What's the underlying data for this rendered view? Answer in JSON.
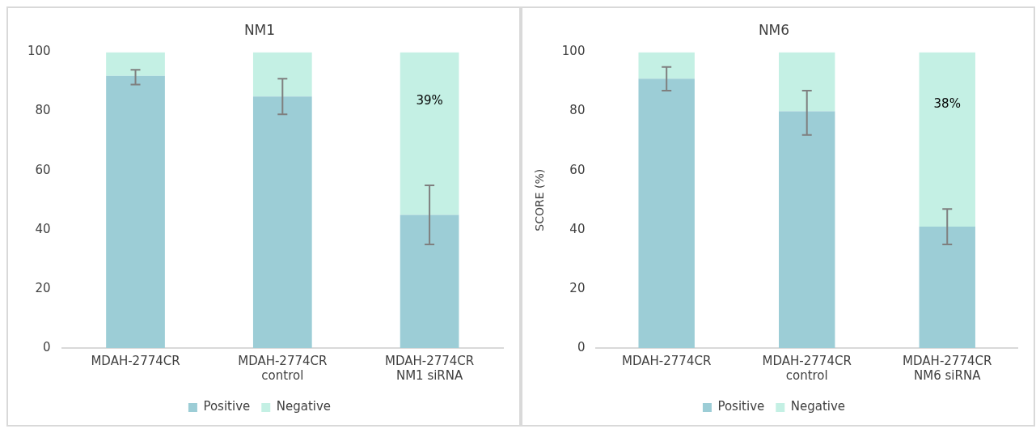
{
  "chart_data": [
    {
      "type": "bar",
      "title": "NM1",
      "stacked": true,
      "grid": false,
      "legend": "bottom",
      "categories": [
        "MDAH-2774CR",
        "MDAH-2774CR control",
        "MDAH-2774CR NM1 siRNA"
      ],
      "series": [
        {
          "name": "Positive",
          "color": "#9ccdd6",
          "values": [
            92,
            85,
            45
          ],
          "errors": [
            [
              89,
              94
            ],
            [
              79,
              91
            ],
            [
              35,
              55
            ]
          ]
        },
        {
          "name": "Negative",
          "color": "#c4f0e4",
          "values": [
            8,
            15,
            55
          ]
        }
      ],
      "ylim": [
        0,
        100
      ],
      "yticks": [
        0,
        20,
        40,
        60,
        80,
        100
      ],
      "annotations": [
        "39%"
      ]
    },
    {
      "type": "bar",
      "title": "NM6",
      "ylabel": "SCORE (%)",
      "stacked": true,
      "grid": false,
      "legend": "bottom",
      "categories": [
        "MDAH-2774CR",
        "MDAH-2774CR control",
        "MDAH-2774CR NM6 siRNA"
      ],
      "series": [
        {
          "name": "Positive",
          "color": "#9ccdd6",
          "values": [
            91,
            80,
            41
          ],
          "errors": [
            [
              87,
              95
            ],
            [
              72,
              87
            ],
            [
              35,
              47
            ]
          ]
        },
        {
          "name": "Negative",
          "color": "#c4f0e4",
          "values": [
            9,
            20,
            59
          ]
        }
      ],
      "ylim": [
        0,
        100
      ],
      "yticks": [
        0,
        20,
        40,
        60,
        80,
        100
      ],
      "annotations": [
        "38%"
      ]
    }
  ]
}
